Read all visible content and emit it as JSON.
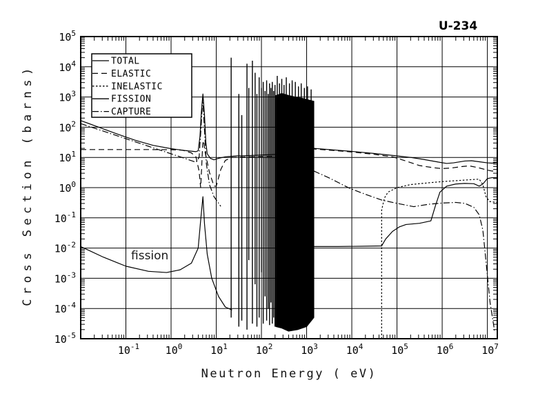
{
  "title": "U-234",
  "chart_data": {
    "type": "line",
    "scale": "log-log",
    "title": "U-234",
    "xlabel": "Neutron Energy ( eV)",
    "ylabel": "Cross Section (barns)",
    "axes": {
      "x": {
        "log_min": -2,
        "log_max": 7.22,
        "tick_exponents": [
          -1,
          0,
          1,
          2,
          3,
          4,
          5,
          6,
          7
        ],
        "gridline_exponents": [
          -1,
          0,
          1,
          2,
          3,
          4,
          5,
          6,
          7
        ]
      },
      "y": {
        "log_min": -5,
        "log_max": 5,
        "tick_exponents": [
          5,
          4,
          3,
          2,
          1,
          0,
          -1,
          -2,
          -3,
          -4,
          -5
        ],
        "gridline_exponents": [
          -4,
          -3,
          -2,
          -1,
          0,
          1,
          2,
          3,
          4
        ]
      }
    },
    "legend": {
      "entries": [
        {
          "label": "TOTAL",
          "style": "solid"
        },
        {
          "label": "ELASTIC",
          "style": "long-dash"
        },
        {
          "label": "INELASTIC",
          "style": "fine-dash"
        },
        {
          "label": "FISSION",
          "style": "solid"
        },
        {
          "label": "CAPTURE",
          "style": "dash-dot"
        }
      ]
    },
    "annotation": {
      "text": "fission",
      "log_x": -0.5,
      "log_y": -2.28
    },
    "colors": {
      "line": "#000000",
      "background": "#ffffff"
    },
    "series": [
      {
        "name": "total",
        "style": "solid",
        "points_log10": [
          [
            -2,
            2.22
          ],
          [
            -1.6,
            2.0
          ],
          [
            -1.2,
            1.78
          ],
          [
            -0.8,
            1.57
          ],
          [
            -0.4,
            1.4
          ],
          [
            0,
            1.29
          ],
          [
            0.3,
            1.23
          ],
          [
            0.55,
            1.19
          ],
          [
            0.6,
            1.22
          ],
          [
            0.64,
            1.7
          ],
          [
            0.67,
            2.5
          ],
          [
            0.705,
            3.1
          ],
          [
            0.74,
            2.4
          ],
          [
            0.77,
            1.5
          ],
          [
            0.8,
            1.12
          ],
          [
            0.87,
            0.97
          ],
          [
            0.95,
            0.92
          ],
          [
            1.05,
            0.97
          ],
          [
            1.2,
            1.02
          ],
          [
            1.45,
            1.05
          ],
          [
            1.7,
            1.06
          ],
          [
            2.0,
            1.08
          ],
          [
            2.32,
            1.1
          ],
          [
            3.16,
            1.3
          ],
          [
            3.5,
            1.26
          ],
          [
            4.0,
            1.2
          ],
          [
            4.5,
            1.13
          ],
          [
            5.0,
            1.05
          ],
          [
            5.3,
            1.0
          ],
          [
            5.6,
            0.93
          ],
          [
            5.9,
            0.85
          ],
          [
            6.1,
            0.8
          ],
          [
            6.25,
            0.82
          ],
          [
            6.5,
            0.88
          ],
          [
            6.65,
            0.89
          ],
          [
            6.85,
            0.85
          ],
          [
            7.0,
            0.82
          ],
          [
            7.1,
            0.81
          ],
          [
            7.22,
            0.83
          ]
        ]
      },
      {
        "name": "elastic",
        "style": "long-dash",
        "points_log10": [
          [
            -2,
            1.26
          ],
          [
            -0.5,
            1.26
          ],
          [
            0,
            1.255
          ],
          [
            0.25,
            1.24
          ],
          [
            0.45,
            1.15
          ],
          [
            0.55,
            1.02
          ],
          [
            0.62,
            0.55
          ],
          [
            0.655,
            0.0
          ],
          [
            0.675,
            0.6
          ],
          [
            0.7,
            1.45
          ],
          [
            0.72,
            1.55
          ],
          [
            0.75,
            1.2
          ],
          [
            0.85,
            0.5
          ],
          [
            0.95,
            0.05
          ],
          [
            1.0,
            0.05
          ],
          [
            1.1,
            0.6
          ],
          [
            1.2,
            0.9
          ],
          [
            1.35,
            1.0
          ],
          [
            1.7,
            1.02
          ],
          [
            2.0,
            1.03
          ],
          [
            2.32,
            1.04
          ],
          [
            3.16,
            1.28
          ],
          [
            3.6,
            1.23
          ],
          [
            4.0,
            1.18
          ],
          [
            4.5,
            1.1
          ],
          [
            4.9,
            1.02
          ],
          [
            5.2,
            0.88
          ],
          [
            5.5,
            0.73
          ],
          [
            5.8,
            0.66
          ],
          [
            6.0,
            0.63
          ],
          [
            6.2,
            0.65
          ],
          [
            6.45,
            0.7
          ],
          [
            6.6,
            0.72
          ],
          [
            6.8,
            0.66
          ],
          [
            7.0,
            0.58
          ],
          [
            7.1,
            0.55
          ],
          [
            7.22,
            0.54
          ]
        ]
      },
      {
        "name": "inelastic",
        "style": "fine-dash",
        "points_log10": [
          [
            4.66,
            -5
          ],
          [
            4.66,
            -0.75
          ],
          [
            4.72,
            -0.35
          ],
          [
            4.8,
            -0.15
          ],
          [
            5.0,
            0.0
          ],
          [
            5.3,
            0.1
          ],
          [
            5.7,
            0.16
          ],
          [
            6.0,
            0.2
          ],
          [
            6.3,
            0.23
          ],
          [
            6.5,
            0.25
          ],
          [
            6.7,
            0.27
          ],
          [
            6.82,
            0.28
          ],
          [
            6.9,
            0.1
          ],
          [
            6.97,
            -0.3
          ],
          [
            7.05,
            -0.46
          ],
          [
            7.22,
            -0.49
          ]
        ]
      },
      {
        "name": "fission-low",
        "style": "solid",
        "points_log10": [
          [
            -2,
            -1.95
          ],
          [
            -1.5,
            -2.3
          ],
          [
            -1,
            -2.6
          ],
          [
            -0.5,
            -2.77
          ],
          [
            -0.1,
            -2.81
          ],
          [
            0.2,
            -2.72
          ],
          [
            0.45,
            -2.5
          ],
          [
            0.6,
            -2.0
          ],
          [
            0.66,
            -1.0
          ],
          [
            0.705,
            -0.3
          ],
          [
            0.74,
            -1.2
          ],
          [
            0.8,
            -2.2
          ],
          [
            0.9,
            -3.0
          ],
          [
            1.05,
            -3.6
          ],
          [
            1.2,
            -3.95
          ],
          [
            1.35,
            -4.05
          ]
        ]
      },
      {
        "name": "fission-high",
        "style": "solid",
        "points_log10": [
          [
            3.16,
            -1.95
          ],
          [
            3.7,
            -1.95
          ],
          [
            4.2,
            -1.94
          ],
          [
            4.66,
            -1.93
          ],
          [
            4.75,
            -1.7
          ],
          [
            4.9,
            -1.45
          ],
          [
            5.05,
            -1.3
          ],
          [
            5.2,
            -1.22
          ],
          [
            5.5,
            -1.18
          ],
          [
            5.75,
            -1.1
          ],
          [
            5.85,
            -0.6
          ],
          [
            5.95,
            -0.15
          ],
          [
            6.1,
            0.05
          ],
          [
            6.3,
            0.12
          ],
          [
            6.5,
            0.14
          ],
          [
            6.7,
            0.13
          ],
          [
            6.82,
            0.05
          ],
          [
            6.9,
            0.12
          ],
          [
            7.0,
            0.3
          ],
          [
            7.1,
            0.33
          ],
          [
            7.22,
            0.33
          ]
        ]
      },
      {
        "name": "capture-low",
        "style": "dash-dot",
        "points_log10": [
          [
            -2,
            2.12
          ],
          [
            -1.5,
            1.87
          ],
          [
            -1,
            1.62
          ],
          [
            -0.5,
            1.37
          ],
          [
            0,
            1.12
          ],
          [
            0.3,
            0.97
          ],
          [
            0.55,
            0.84
          ],
          [
            0.62,
            1.0
          ],
          [
            0.66,
            1.9
          ],
          [
            0.7,
            2.95
          ],
          [
            0.74,
            1.9
          ],
          [
            0.78,
            0.8
          ],
          [
            0.85,
            0.1
          ],
          [
            0.95,
            -0.3
          ],
          [
            1.1,
            -0.62
          ]
        ]
      },
      {
        "name": "capture-high",
        "style": "dash-dot",
        "points_log10": [
          [
            3.16,
            0.55
          ],
          [
            3.5,
            0.32
          ],
          [
            3.95,
            -0.02
          ],
          [
            4.3,
            -0.22
          ],
          [
            4.66,
            -0.41
          ],
          [
            5.0,
            -0.52
          ],
          [
            5.37,
            -0.63
          ],
          [
            5.7,
            -0.55
          ],
          [
            6.0,
            -0.51
          ],
          [
            6.3,
            -0.49
          ],
          [
            6.5,
            -0.52
          ],
          [
            6.7,
            -0.65
          ],
          [
            6.82,
            -0.9
          ],
          [
            6.9,
            -1.4
          ],
          [
            6.98,
            -2.6
          ],
          [
            7.06,
            -3.8
          ],
          [
            7.16,
            -4.75
          ]
        ]
      }
    ],
    "resonance_spikes_log10": [
      [
        1.33,
        4.3,
        -4.3
      ],
      [
        1.5,
        3.1,
        -4.6
      ],
      [
        1.565,
        2.4,
        -4.4
      ],
      [
        1.68,
        4.1,
        -4.7
      ],
      [
        1.72,
        3.3,
        -2.4
      ],
      [
        1.8,
        4.2,
        -4.5
      ],
      [
        1.86,
        3.8,
        -3.2
      ],
      [
        1.9,
        3.1,
        -4.6
      ],
      [
        1.95,
        3.65,
        -4.3
      ],
      [
        2.0,
        3.3,
        -2.8
      ],
      [
        2.04,
        3.5,
        -4.5
      ],
      [
        2.08,
        3.2,
        -3.6
      ],
      [
        2.115,
        3.55,
        -4.4
      ],
      [
        2.15,
        3.1,
        -4.0
      ],
      [
        2.18,
        3.45,
        -4.55
      ],
      [
        2.21,
        3.3,
        -3.8
      ],
      [
        2.24,
        3.5,
        -4.5
      ],
      [
        2.27,
        3.2,
        -4.3
      ],
      [
        2.3,
        3.4,
        -4.6
      ],
      [
        2.35,
        3.7,
        -4.0
      ],
      [
        2.4,
        3.45,
        -4.0
      ],
      [
        2.45,
        3.6,
        -4.0
      ],
      [
        2.5,
        3.4,
        -4.0
      ],
      [
        2.55,
        3.65,
        -4.0
      ],
      [
        2.62,
        3.45,
        -4.0
      ],
      [
        2.68,
        3.55,
        -4.0
      ],
      [
        2.75,
        3.5,
        -4.0
      ],
      [
        2.82,
        3.35,
        -4.0
      ],
      [
        2.88,
        3.45,
        -4.0
      ],
      [
        2.95,
        3.3,
        -4.0
      ],
      [
        3.02,
        3.35,
        -4.0
      ],
      [
        3.1,
        3.25,
        -4.0
      ]
    ],
    "unresolved_band_polygon_log10": [
      [
        2.32,
        3.05
      ],
      [
        2.45,
        3.12
      ],
      [
        2.6,
        3.05
      ],
      [
        2.75,
        3.0
      ],
      [
        2.9,
        2.96
      ],
      [
        3.05,
        2.9
      ],
      [
        3.16,
        2.86
      ],
      [
        3.16,
        -4.3
      ],
      [
        3.0,
        -4.6
      ],
      [
        2.8,
        -4.7
      ],
      [
        2.6,
        -4.75
      ],
      [
        2.45,
        -4.65
      ],
      [
        2.32,
        -4.6
      ]
    ]
  }
}
